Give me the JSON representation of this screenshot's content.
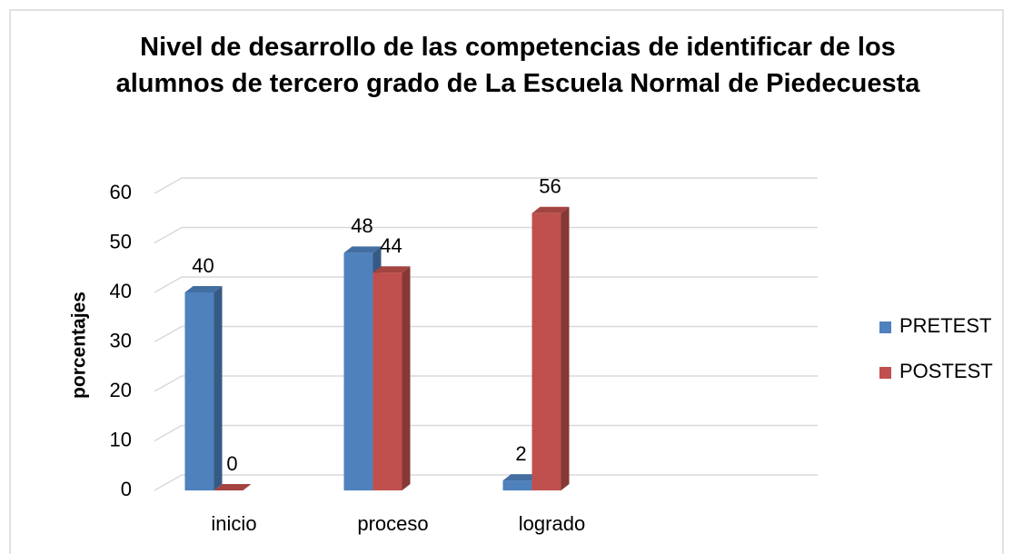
{
  "chart_data": {
    "type": "bar3d",
    "title": "Nivel de desarrollo de las competencias de identificar de los alumnos de tercero grado de La Escuela Normal de Piedecuesta",
    "ylabel": "porcentajes",
    "categories": [
      "inicio",
      "proceso",
      "logrado"
    ],
    "series": [
      {
        "name": "PRETEST",
        "color": "#4f81bd",
        "values": [
          40,
          48,
          2
        ]
      },
      {
        "name": "POSTEST",
        "color": "#c0504d",
        "values": [
          0,
          44,
          56
        ]
      }
    ],
    "ylim": [
      0,
      60
    ],
    "yticks": [
      0,
      10,
      20,
      30,
      40,
      50,
      60
    ],
    "grid": true,
    "legend": "right"
  }
}
